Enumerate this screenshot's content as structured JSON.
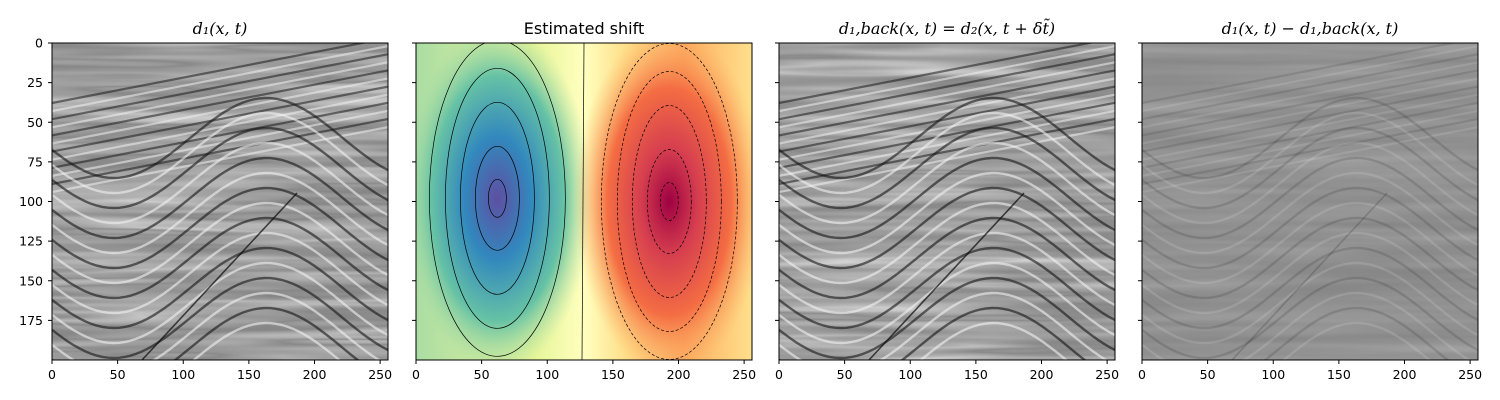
{
  "chart_data": [
    {
      "type": "heatmap",
      "title": "d₁(x, t)",
      "colormap": "gray",
      "content": "seismic-section",
      "xlim": [
        0,
        256
      ],
      "ylim": [
        200,
        0
      ],
      "x_ticks": [
        0,
        50,
        100,
        150,
        200,
        250
      ],
      "y_ticks": [
        0,
        25,
        50,
        75,
        100,
        125,
        150,
        175
      ],
      "show_y_tick_labels": true
    },
    {
      "type": "heatmap",
      "title": "Estimated shift",
      "colormap": "Spectral",
      "content": "shift-field",
      "contours": true,
      "xlim": [
        0,
        256
      ],
      "ylim": [
        200,
        0
      ],
      "x_ticks": [
        0,
        50,
        100,
        150,
        200,
        250
      ],
      "y_ticks": [
        0,
        25,
        50,
        75,
        100,
        125,
        150,
        175
      ],
      "show_y_tick_labels": false,
      "extrema": [
        {
          "label": "min",
          "x": 62,
          "y": 98,
          "color": "#5e4fa2"
        },
        {
          "label": "max",
          "x": 193,
          "y": 100,
          "color": "#9e0142"
        }
      ]
    },
    {
      "type": "heatmap",
      "title": "d₁,back(x, t) = d₂(x, t + δt̃)",
      "colormap": "gray",
      "content": "seismic-section",
      "xlim": [
        0,
        256
      ],
      "ylim": [
        200,
        0
      ],
      "x_ticks": [
        0,
        50,
        100,
        150,
        200,
        250
      ],
      "y_ticks": [
        0,
        25,
        50,
        75,
        100,
        125,
        150,
        175
      ],
      "show_y_tick_labels": false
    },
    {
      "type": "heatmap",
      "title": "d₁(x, t) − d₁,back(x, t)",
      "colormap": "gray",
      "content": "seismic-residual",
      "xlim": [
        0,
        256
      ],
      "ylim": [
        200,
        0
      ],
      "x_ticks": [
        0,
        50,
        100,
        150,
        200,
        250
      ],
      "y_ticks": [
        0,
        25,
        50,
        75,
        100,
        125,
        150,
        175
      ],
      "show_y_tick_labels": false
    }
  ],
  "colors": {
    "gray_mid": "#808080",
    "spectral": [
      "#5e4fa2",
      "#3288bd",
      "#66c2a5",
      "#abdda4",
      "#e6f598",
      "#ffffbf",
      "#fee08b",
      "#fdae61",
      "#f46d43",
      "#d53e4f",
      "#9e0142"
    ]
  }
}
